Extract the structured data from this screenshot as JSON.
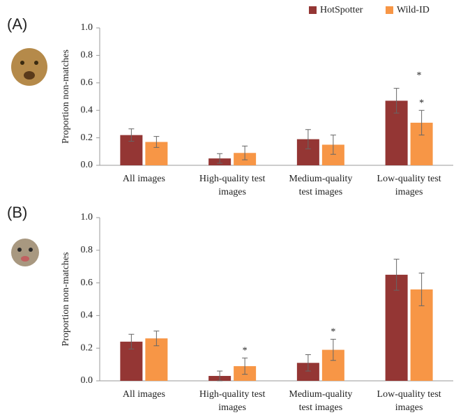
{
  "chart_data": [
    {
      "type": "bar",
      "panel_label": "(A)",
      "ylabel": "Proportion non-matches",
      "categories": [
        [
          "All images"
        ],
        [
          "High-quality test",
          "images"
        ],
        [
          "Medium-quality",
          "test images"
        ],
        [
          "Low-quality test",
          "images"
        ]
      ],
      "series": [
        {
          "name": "HotSpotter",
          "color": "#943634",
          "values": [
            0.22,
            0.05,
            0.19,
            0.47
          ],
          "errors": [
            0.045,
            0.035,
            0.07,
            0.09
          ]
        },
        {
          "name": "Wild-ID",
          "color": "#f79646",
          "values": [
            0.17,
            0.09,
            0.15,
            0.31
          ],
          "errors": [
            0.04,
            0.05,
            0.07,
            0.09
          ]
        }
      ],
      "significance": [
        null,
        null,
        null,
        "*"
      ],
      "ylim": [
        0,
        1.0
      ],
      "yticks": [
        {
          "value": 0,
          "label": "0.0"
        },
        0.2,
        0.4,
        0.6,
        0.8,
        {
          "value": 1.0,
          "label": "1.0"
        }
      ]
    },
    {
      "type": "bar",
      "panel_label": "(B)",
      "ylabel": "Proportion non-matches",
      "categories": [
        [
          "All images"
        ],
        [
          "High-quality test",
          "images"
        ],
        [
          "Medium-quality",
          "test images"
        ],
        [
          "Low-quality test",
          "images"
        ]
      ],
      "series": [
        {
          "color": "#943634",
          "values": [
            0.24,
            0.03,
            0.11,
            0.65
          ],
          "errors": [
            0.045,
            0.03,
            0.05,
            0.095
          ]
        },
        {
          "color": "#f79646",
          "values": [
            0.26,
            0.09,
            0.19,
            0.56
          ],
          "errors": [
            0.045,
            0.05,
            0.065,
            0.1
          ]
        }
      ],
      "significance": [
        null,
        "*",
        "*",
        null
      ],
      "ylim": [
        0,
        1.0
      ],
      "yticks": [
        {
          "value": 0,
          "label": "0.0"
        },
        0.2,
        0.4,
        0.6,
        0.8,
        {
          "value": 1.0,
          "label": "1.0"
        }
      ]
    }
  ]
}
